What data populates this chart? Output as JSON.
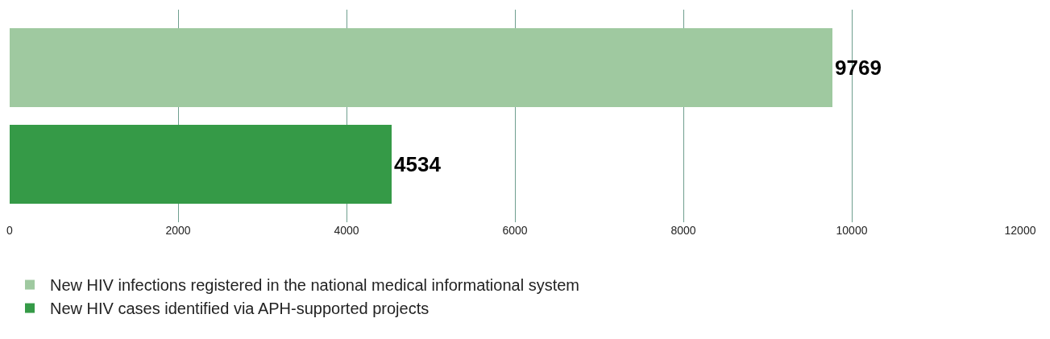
{
  "chart_data": {
    "type": "bar",
    "orientation": "horizontal",
    "categories": [
      null,
      null
    ],
    "series": [
      {
        "name": "New HIV infections registered in the national medical informational system",
        "color": "#9fc9a0",
        "values": [
          9769,
          null
        ]
      },
      {
        "name": "New HIV cases identified via APH-supported projects",
        "color": "#359a47",
        "values": [
          null,
          4534
        ]
      }
    ],
    "xlim": [
      0,
      12000
    ],
    "xticks": [
      0,
      2000,
      4000,
      6000,
      8000,
      10000,
      12000
    ],
    "grid": "x",
    "legend": "bottom",
    "data_labels": true,
    "tick_labels": "x"
  }
}
